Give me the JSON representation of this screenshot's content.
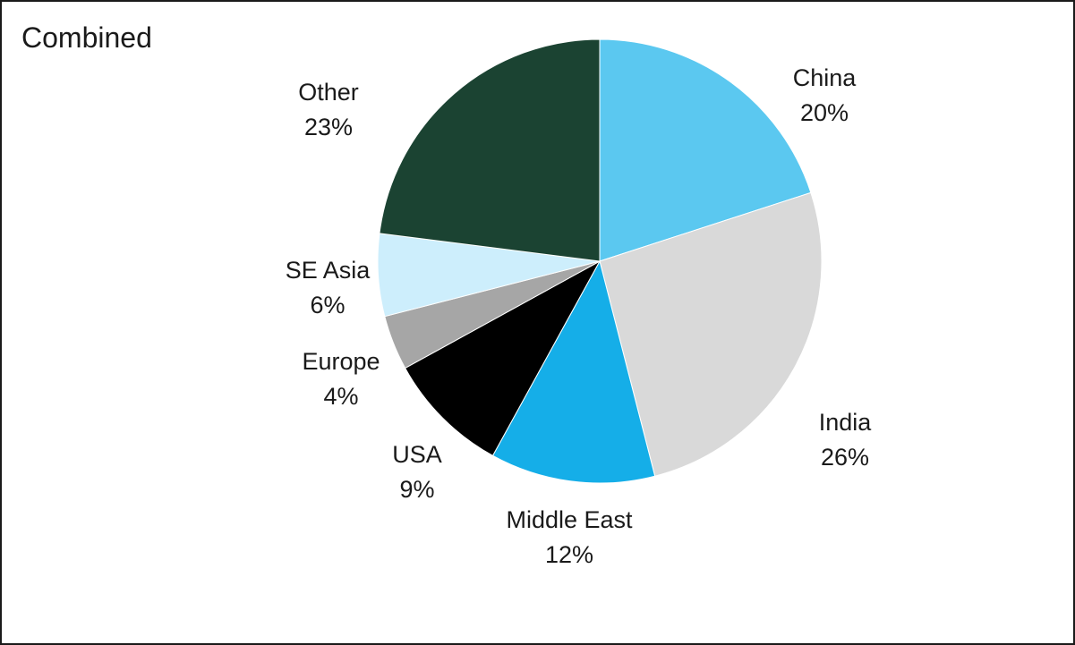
{
  "chart_data": {
    "type": "pie",
    "title": "Combined",
    "slices": [
      {
        "label": "China",
        "value": 20,
        "value_label": "20%",
        "color": "#5bc8f0"
      },
      {
        "label": "India",
        "value": 26,
        "value_label": "26%",
        "color": "#d9d9d9"
      },
      {
        "label": "Middle East",
        "value": 12,
        "value_label": "12%",
        "color": "#15aee8"
      },
      {
        "label": "USA",
        "value": 9,
        "value_label": "9%",
        "color": "#000000"
      },
      {
        "label": "Europe",
        "value": 4,
        "value_label": "4%",
        "color": "#a6a6a6"
      },
      {
        "label": "SE Asia",
        "value": 6,
        "value_label": "6%",
        "color": "#cdeefc"
      },
      {
        "label": "Other",
        "value": 23,
        "value_label": "23%",
        "color": "#1b4332"
      }
    ],
    "start_angle": "12 o'clock",
    "direction": "clockwise",
    "legend": "none"
  }
}
